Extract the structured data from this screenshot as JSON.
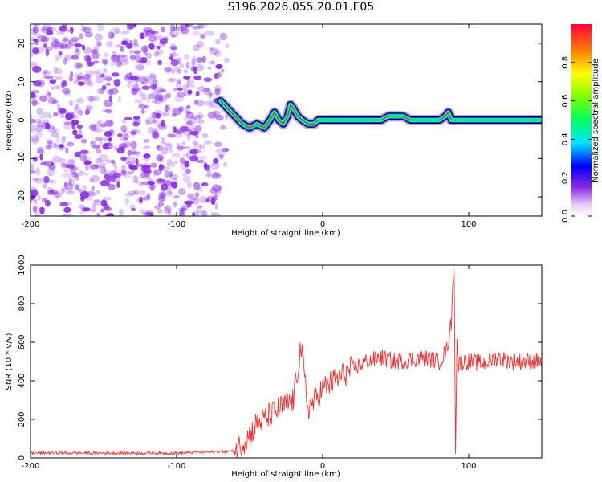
{
  "title": "S196.2026.055.20.01.E05",
  "colors": {
    "snr_line": "#ee3333",
    "scatter": "#8a2be2",
    "band_outline": "#000000"
  },
  "chart_data": [
    {
      "type": "heatmap",
      "xlabel": "Height of straight line (km)",
      "ylabel": "Frequency (Hz)",
      "xlim": [
        -200,
        150
      ],
      "ylim": [
        -25,
        25
      ],
      "xticks": [
        -200,
        -100,
        0,
        100
      ],
      "yticks": [
        -20,
        -10,
        0,
        10,
        20
      ],
      "noise_region_x": [
        -200,
        -60
      ],
      "signal_track": {
        "x": [
          -70,
          -65,
          -60,
          -55,
          -50,
          -45,
          -40,
          -36,
          -33,
          -30,
          -27,
          -24,
          -22,
          -20,
          -17,
          -14,
          -10,
          -6,
          -3,
          0,
          20,
          40,
          45,
          50,
          55,
          60,
          70,
          80,
          84,
          86,
          88,
          90,
          100,
          110,
          120,
          150
        ],
        "y": [
          5,
          3,
          1,
          -1,
          -2,
          -1,
          -2,
          0,
          2,
          0,
          -1,
          1,
          4,
          3,
          1,
          0,
          -1,
          -1,
          0,
          0,
          0,
          0,
          1,
          1,
          1,
          0,
          0,
          0,
          1,
          2,
          0,
          0,
          0,
          0,
          0,
          0
        ]
      },
      "colorbar": {
        "label": "Normalized spectral amplitude",
        "ticks": [
          0.0,
          0.2,
          0.4,
          0.6,
          0.8
        ],
        "tick_labels": [
          "0.0",
          "0.2",
          "0.4",
          "0.6",
          "0.8"
        ],
        "range": [
          0,
          1
        ]
      }
    },
    {
      "type": "line",
      "xlabel": "Height of straight line (km)",
      "ylabel": "SNR (10 * v/v)",
      "xlim": [
        -200,
        150
      ],
      "ylim": [
        0,
        1000
      ],
      "xticks": [
        -200,
        -100,
        0,
        100
      ],
      "yticks": [
        0,
        200,
        400,
        600,
        800,
        1000
      ],
      "series": [
        {
          "name": "SNR",
          "x": [
            -200,
            -150,
            -100,
            -80,
            -60,
            -50,
            -45,
            -40,
            -30,
            -20,
            -15,
            -10,
            -5,
            0,
            10,
            20,
            30,
            40,
            50,
            60,
            70,
            80,
            85,
            88,
            90,
            91,
            92,
            93,
            95,
            100,
            110,
            120,
            130,
            140,
            150
          ],
          "values": [
            25,
            25,
            25,
            30,
            35,
            120,
            180,
            200,
            250,
            300,
            580,
            260,
            300,
            360,
            410,
            460,
            500,
            520,
            500,
            510,
            520,
            500,
            560,
            700,
            1020,
            50,
            600,
            480,
            500,
            500,
            490,
            520,
            500,
            500,
            500
          ]
        }
      ]
    }
  ]
}
